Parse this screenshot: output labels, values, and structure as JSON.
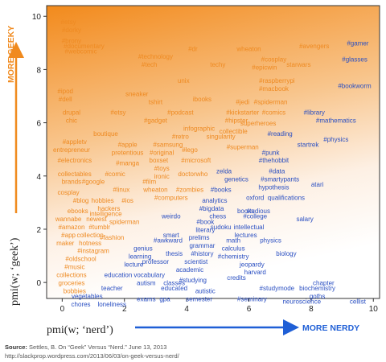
{
  "chart_data": {
    "type": "scatter",
    "title": "",
    "xlabel": "pmi(w; ‘nerd’)",
    "ylabel": "pmi(w; ‘geek’)",
    "xlim": [
      -0.5,
      10.2
    ],
    "ylim": [
      -0.6,
      10.4
    ],
    "x_ticks": [
      0,
      2,
      4,
      6,
      8,
      10
    ],
    "y_ticks": [
      0,
      2,
      4,
      6,
      8,
      10
    ],
    "grid": false,
    "geek_color": "#ee8a22",
    "nerd_color": "#2a4fc2",
    "axis_arrow_color": "#f08a1e",
    "nerd_arrow_color": "#1f5fd6",
    "annotation_geeky": "MORE GEEKY",
    "annotation_nerdy": "MORE NERDY",
    "points": [
      {
        "w": "#etsy",
        "x": 0.2,
        "y": 9.7,
        "g": "geek"
      },
      {
        "w": "#dorky",
        "x": 0.3,
        "y": 9.4,
        "g": "geek"
      },
      {
        "w": "#brony",
        "x": 0.3,
        "y": 9.0,
        "g": "geek"
      },
      {
        "w": "#documentary",
        "x": 0.7,
        "y": 8.8,
        "g": "geek"
      },
      {
        "w": "#webcomic",
        "x": 0.6,
        "y": 8.6,
        "g": "geek"
      },
      {
        "w": "#technology",
        "x": 3.0,
        "y": 8.4,
        "g": "geek"
      },
      {
        "w": "#tech",
        "x": 2.8,
        "y": 8.1,
        "g": "geek"
      },
      {
        "w": "#dr",
        "x": 4.2,
        "y": 8.7,
        "g": "geek"
      },
      {
        "w": "wheaton",
        "x": 6.0,
        "y": 8.7,
        "g": "geek"
      },
      {
        "w": "#avengers",
        "x": 8.1,
        "y": 8.8,
        "g": "geek"
      },
      {
        "w": "#gamer",
        "x": 9.5,
        "y": 8.9,
        "g": "nerd"
      },
      {
        "w": "techy",
        "x": 5.0,
        "y": 8.1,
        "g": "geek"
      },
      {
        "w": "#cosplay",
        "x": 6.8,
        "y": 8.3,
        "g": "geek"
      },
      {
        "w": "#epicwin",
        "x": 6.5,
        "y": 8.0,
        "g": "geek"
      },
      {
        "w": "starwars",
        "x": 7.6,
        "y": 8.1,
        "g": "geek"
      },
      {
        "w": "#glasses",
        "x": 9.4,
        "y": 8.3,
        "g": "nerd"
      },
      {
        "w": "unix",
        "x": 3.9,
        "y": 7.5,
        "g": "geek"
      },
      {
        "w": "#raspberrypi",
        "x": 6.9,
        "y": 7.5,
        "g": "geek"
      },
      {
        "w": "#macbook",
        "x": 6.8,
        "y": 7.2,
        "g": "geek"
      },
      {
        "w": "#bookworm",
        "x": 9.4,
        "y": 7.3,
        "g": "nerd"
      },
      {
        "w": "#ipod",
        "x": 0.1,
        "y": 7.1,
        "g": "geek"
      },
      {
        "w": "sneaker",
        "x": 2.4,
        "y": 7.0,
        "g": "geek"
      },
      {
        "w": "#dell",
        "x": 0.1,
        "y": 6.8,
        "g": "geek"
      },
      {
        "w": "tshirt",
        "x": 3.0,
        "y": 6.7,
        "g": "geek"
      },
      {
        "w": "ibooks",
        "x": 4.5,
        "y": 6.8,
        "g": "geek"
      },
      {
        "w": "#jedi",
        "x": 5.8,
        "y": 6.7,
        "g": "geek"
      },
      {
        "w": "#spiderman",
        "x": 6.7,
        "y": 6.7,
        "g": "geek"
      },
      {
        "w": "drupal",
        "x": 0.3,
        "y": 6.3,
        "g": "geek"
      },
      {
        "w": "#etsy",
        "x": 1.8,
        "y": 6.3,
        "g": "geek"
      },
      {
        "w": "#podcast",
        "x": 3.8,
        "y": 6.3,
        "g": "geek"
      },
      {
        "w": "#kickstarter",
        "x": 5.8,
        "y": 6.3,
        "g": "geek"
      },
      {
        "w": "#comics",
        "x": 6.8,
        "y": 6.3,
        "g": "geek"
      },
      {
        "w": "#library",
        "x": 8.1,
        "y": 6.3,
        "g": "nerd"
      },
      {
        "w": "chic",
        "x": 0.3,
        "y": 6.0,
        "g": "geek"
      },
      {
        "w": "#gadget",
        "x": 3.0,
        "y": 6.0,
        "g": "geek"
      },
      {
        "w": "#hipster",
        "x": 5.6,
        "y": 6.0,
        "g": "geek"
      },
      {
        "w": "superheroes",
        "x": 6.3,
        "y": 5.9,
        "g": "geek"
      },
      {
        "w": "#mathematics",
        "x": 8.8,
        "y": 6.0,
        "g": "nerd"
      },
      {
        "w": "infographic",
        "x": 4.4,
        "y": 5.7,
        "g": "geek"
      },
      {
        "w": "collectible",
        "x": 5.5,
        "y": 5.6,
        "g": "geek"
      },
      {
        "w": "boutique",
        "x": 1.4,
        "y": 5.5,
        "g": "geek"
      },
      {
        "w": "#retro",
        "x": 3.8,
        "y": 5.4,
        "g": "geek"
      },
      {
        "w": "singularity",
        "x": 5.1,
        "y": 5.4,
        "g": "geek"
      },
      {
        "w": "#reading",
        "x": 7.0,
        "y": 5.5,
        "g": "nerd"
      },
      {
        "w": "#appletv",
        "x": 0.4,
        "y": 5.2,
        "g": "geek"
      },
      {
        "w": "#apple",
        "x": 2.1,
        "y": 5.1,
        "g": "geek"
      },
      {
        "w": "#samsung",
        "x": 3.4,
        "y": 5.1,
        "g": "geek"
      },
      {
        "w": "#physics",
        "x": 8.8,
        "y": 5.3,
        "g": "nerd"
      },
      {
        "w": "entrepreneur",
        "x": 0.3,
        "y": 4.9,
        "g": "geek"
      },
      {
        "w": "#original",
        "x": 3.2,
        "y": 4.8,
        "g": "geek"
      },
      {
        "w": "#lego",
        "x": 4.1,
        "y": 4.9,
        "g": "geek"
      },
      {
        "w": "#superman",
        "x": 5.8,
        "y": 5.0,
        "g": "geek"
      },
      {
        "w": "startrek",
        "x": 7.9,
        "y": 5.1,
        "g": "nerd"
      },
      {
        "w": "pretentious",
        "x": 2.1,
        "y": 4.8,
        "g": "geek"
      },
      {
        "w": "#punk",
        "x": 6.7,
        "y": 4.8,
        "g": "nerd"
      },
      {
        "w": "#electronics",
        "x": 0.4,
        "y": 4.5,
        "g": "geek"
      },
      {
        "w": "#manga",
        "x": 2.1,
        "y": 4.4,
        "g": "geek"
      },
      {
        "w": "boxset",
        "x": 3.1,
        "y": 4.5,
        "g": "geek"
      },
      {
        "w": "#microsoft",
        "x": 4.3,
        "y": 4.5,
        "g": "geek"
      },
      {
        "w": "#thehobbit",
        "x": 6.8,
        "y": 4.5,
        "g": "nerd"
      },
      {
        "w": "#toys",
        "x": 3.2,
        "y": 4.2,
        "g": "geek"
      },
      {
        "w": "zelda",
        "x": 5.2,
        "y": 4.1,
        "g": "nerd"
      },
      {
        "w": "#data",
        "x": 6.9,
        "y": 4.1,
        "g": "nerd"
      },
      {
        "w": "#comic",
        "x": 1.7,
        "y": 4.0,
        "g": "geek"
      },
      {
        "w": "ironic",
        "x": 3.2,
        "y": 3.9,
        "g": "geek"
      },
      {
        "w": "doctorwho",
        "x": 4.2,
        "y": 4.0,
        "g": "geek"
      },
      {
        "w": "#smartypants",
        "x": 7.0,
        "y": 3.8,
        "g": "nerd"
      },
      {
        "w": "collectables",
        "x": 0.4,
        "y": 4.0,
        "g": "geek"
      },
      {
        "w": "genetics",
        "x": 5.6,
        "y": 3.8,
        "g": "nerd"
      },
      {
        "w": "atari",
        "x": 8.2,
        "y": 3.6,
        "g": "nerd"
      },
      {
        "w": "brands",
        "x": 0.3,
        "y": 3.7,
        "g": "geek"
      },
      {
        "w": "#google",
        "x": 1.0,
        "y": 3.7,
        "g": "geek"
      },
      {
        "w": "#film",
        "x": 2.8,
        "y": 3.7,
        "g": "geek"
      },
      {
        "w": "hypothesis",
        "x": 6.8,
        "y": 3.5,
        "g": "nerd"
      },
      {
        "w": "#linux",
        "x": 1.9,
        "y": 3.4,
        "g": "geek"
      },
      {
        "w": "wheaton",
        "x": 3.0,
        "y": 3.4,
        "g": "geek"
      },
      {
        "w": "#zombies",
        "x": 4.1,
        "y": 3.4,
        "g": "geek"
      },
      {
        "w": "#books",
        "x": 5.1,
        "y": 3.4,
        "g": "nerd"
      },
      {
        "w": "cosplay",
        "x": 0.2,
        "y": 3.3,
        "g": "geek"
      },
      {
        "w": "#computers",
        "x": 3.5,
        "y": 3.1,
        "g": "geek"
      },
      {
        "w": "analytics",
        "x": 4.9,
        "y": 3.0,
        "g": "nerd"
      },
      {
        "w": "oxford",
        "x": 6.2,
        "y": 3.1,
        "g": "nerd"
      },
      {
        "w": "qualifications",
        "x": 7.2,
        "y": 3.1,
        "g": "nerd"
      },
      {
        "w": "#blog",
        "x": 0.6,
        "y": 3.0,
        "g": "geek"
      },
      {
        "w": "hobbies",
        "x": 1.3,
        "y": 3.0,
        "g": "geek"
      },
      {
        "w": "#ios",
        "x": 2.1,
        "y": 3.0,
        "g": "geek"
      },
      {
        "w": "#bigdata",
        "x": 4.8,
        "y": 2.7,
        "g": "nerd"
      },
      {
        "w": "hackers",
        "x": 1.5,
        "y": 2.7,
        "g": "geek"
      },
      {
        "w": "books",
        "x": 5.9,
        "y": 2.6,
        "g": "nerd"
      },
      {
        "w": "studious",
        "x": 6.3,
        "y": 2.6,
        "g": "nerd"
      },
      {
        "w": "ebooks",
        "x": 0.5,
        "y": 2.6,
        "g": "geek"
      },
      {
        "w": "intelligence",
        "x": 1.4,
        "y": 2.5,
        "g": "geek"
      },
      {
        "w": "weirdo",
        "x": 3.5,
        "y": 2.4,
        "g": "nerd"
      },
      {
        "w": "chess",
        "x": 5.0,
        "y": 2.4,
        "g": "nerd"
      },
      {
        "w": "#college",
        "x": 6.2,
        "y": 2.4,
        "g": "nerd"
      },
      {
        "w": "salary",
        "x": 7.8,
        "y": 2.3,
        "g": "nerd"
      },
      {
        "w": "wannabe",
        "x": 0.2,
        "y": 2.3,
        "g": "geek"
      },
      {
        "w": "newest",
        "x": 1.1,
        "y": 2.3,
        "g": "geek"
      },
      {
        "w": "spiderman",
        "x": 2.0,
        "y": 2.2,
        "g": "geek"
      },
      {
        "w": "#book",
        "x": 4.6,
        "y": 2.2,
        "g": "nerd"
      },
      {
        "w": "sudoku",
        "x": 5.1,
        "y": 2.0,
        "g": "nerd"
      },
      {
        "w": "intellectual",
        "x": 6.0,
        "y": 2.0,
        "g": "nerd"
      },
      {
        "w": "#amazon",
        "x": 0.3,
        "y": 2.0,
        "g": "geek"
      },
      {
        "w": "#tumblr",
        "x": 1.2,
        "y": 2.0,
        "g": "geek"
      },
      {
        "w": "literary",
        "x": 4.6,
        "y": 1.9,
        "g": "nerd"
      },
      {
        "w": "lectures",
        "x": 5.9,
        "y": 1.7,
        "g": "nerd"
      },
      {
        "w": "#app",
        "x": 0.2,
        "y": 1.7,
        "g": "geek"
      },
      {
        "w": "collection",
        "x": 0.9,
        "y": 1.7,
        "g": "geek"
      },
      {
        "w": "#fashion",
        "x": 1.6,
        "y": 1.6,
        "g": "geek"
      },
      {
        "w": "smart",
        "x": 3.5,
        "y": 1.7,
        "g": "nerd"
      },
      {
        "w": "prelims",
        "x": 4.4,
        "y": 1.6,
        "g": "nerd"
      },
      {
        "w": "math",
        "x": 5.5,
        "y": 1.5,
        "g": "nerd"
      },
      {
        "w": "physics",
        "x": 6.7,
        "y": 1.5,
        "g": "nerd"
      },
      {
        "w": "maker",
        "x": 0.1,
        "y": 1.4,
        "g": "geek"
      },
      {
        "w": "hotness",
        "x": 0.9,
        "y": 1.4,
        "g": "geek"
      },
      {
        "w": "#awkward",
        "x": 3.4,
        "y": 1.5,
        "g": "nerd"
      },
      {
        "w": "grammar",
        "x": 4.5,
        "y": 1.3,
        "g": "nerd"
      },
      {
        "w": "calculus",
        "x": 5.5,
        "y": 1.2,
        "g": "nerd"
      },
      {
        "w": "#instagram",
        "x": 1.0,
        "y": 1.1,
        "g": "geek"
      },
      {
        "w": "genius",
        "x": 2.6,
        "y": 1.2,
        "g": "nerd"
      },
      {
        "w": "thesis",
        "x": 3.6,
        "y": 1.0,
        "g": "nerd"
      },
      {
        "w": "#history",
        "x": 4.5,
        "y": 1.0,
        "g": "nerd"
      },
      {
        "w": "#chemistry",
        "x": 5.5,
        "y": 0.9,
        "g": "nerd"
      },
      {
        "w": "biology",
        "x": 7.2,
        "y": 1.0,
        "g": "nerd"
      },
      {
        "w": "#oldschool",
        "x": 0.6,
        "y": 0.8,
        "g": "geek"
      },
      {
        "w": "learning",
        "x": 2.5,
        "y": 0.9,
        "g": "nerd"
      },
      {
        "w": "professor",
        "x": 3.0,
        "y": 0.7,
        "g": "nerd"
      },
      {
        "w": "scientist",
        "x": 4.3,
        "y": 0.7,
        "g": "nerd"
      },
      {
        "w": "lecture",
        "x": 2.3,
        "y": 0.6,
        "g": "nerd"
      },
      {
        "w": "jeopardy",
        "x": 6.1,
        "y": 0.6,
        "g": "nerd"
      },
      {
        "w": "#music",
        "x": 0.4,
        "y": 0.5,
        "g": "geek"
      },
      {
        "w": "academic",
        "x": 4.1,
        "y": 0.4,
        "g": "nerd"
      },
      {
        "w": "harvard",
        "x": 6.2,
        "y": 0.3,
        "g": "nerd"
      },
      {
        "w": "collections",
        "x": 0.3,
        "y": 0.2,
        "g": "geek"
      },
      {
        "w": "education",
        "x": 1.8,
        "y": 0.2,
        "g": "nerd"
      },
      {
        "w": "vocabulary",
        "x": 2.8,
        "y": 0.2,
        "g": "nerd"
      },
      {
        "w": "credits",
        "x": 5.6,
        "y": 0.1,
        "g": "nerd"
      },
      {
        "w": "#studying",
        "x": 4.2,
        "y": 0.0,
        "g": "nerd"
      },
      {
        "w": "chapter",
        "x": 8.4,
        "y": -0.1,
        "g": "nerd"
      },
      {
        "w": "groceries",
        "x": 0.3,
        "y": -0.1,
        "g": "geek"
      },
      {
        "w": "autism",
        "x": 2.7,
        "y": -0.1,
        "g": "nerd"
      },
      {
        "w": "classes",
        "x": 3.6,
        "y": -0.1,
        "g": "nerd"
      },
      {
        "w": "#studymode",
        "x": 6.9,
        "y": -0.3,
        "g": "nerd"
      },
      {
        "w": "biochemistry",
        "x": 8.2,
        "y": -0.3,
        "g": "nerd"
      },
      {
        "w": "bobbies",
        "x": 0.4,
        "y": -0.4,
        "g": "geek"
      },
      {
        "w": "teacher",
        "x": 1.6,
        "y": -0.3,
        "g": "nerd"
      },
      {
        "w": "educated",
        "x": 3.6,
        "y": -0.3,
        "g": "nerd"
      },
      {
        "w": "autistic",
        "x": 4.6,
        "y": -0.4,
        "g": "nerd"
      },
      {
        "w": "goths",
        "x": 8.2,
        "y": -0.6,
        "g": "nerd"
      },
      {
        "w": "vegetables",
        "x": 0.8,
        "y": -0.6,
        "g": "nerd"
      },
      {
        "w": "exams",
        "x": 2.7,
        "y": -0.7,
        "g": "nerd"
      },
      {
        "w": "gpa",
        "x": 3.3,
        "y": -0.7,
        "g": "nerd"
      },
      {
        "w": "semester",
        "x": 4.4,
        "y": -0.7,
        "g": "nerd"
      },
      {
        "w": "#seminary",
        "x": 6.1,
        "y": -0.7,
        "g": "nerd"
      },
      {
        "w": "neuroscience",
        "x": 7.7,
        "y": -0.8,
        "g": "nerd"
      },
      {
        "w": "cellist",
        "x": 9.5,
        "y": -0.8,
        "g": "nerd"
      },
      {
        "w": "chores",
        "x": 0.6,
        "y": -0.9,
        "g": "nerd"
      },
      {
        "w": "loneliness",
        "x": 1.6,
        "y": -0.9,
        "g": "nerd"
      }
    ]
  },
  "source": {
    "label": "Source:",
    "text": "Settles, B. On “Geek” Versus “Nerd.” June 13, 2013",
    "url": "http://slackprop.wordpress.com/2013/06/03/on-geek-versus-nerd/"
  }
}
